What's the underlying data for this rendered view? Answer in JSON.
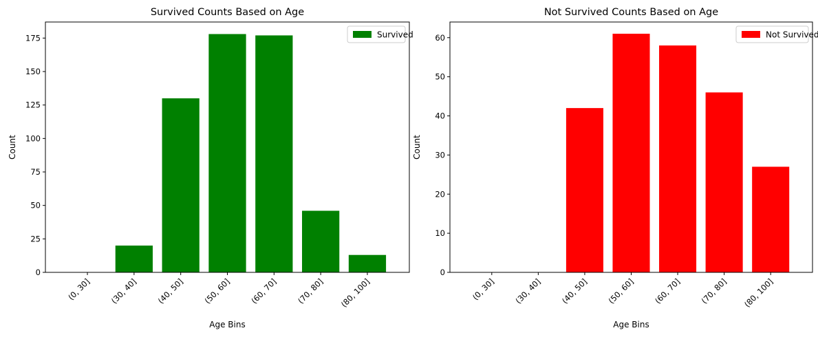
{
  "chart_data": [
    {
      "type": "bar",
      "title": "Survived Counts Based on Age",
      "xlabel": "Age Bins",
      "ylabel": "Count",
      "categories": [
        "(0, 30]",
        "(30, 40]",
        "(40, 50]",
        "(50, 60]",
        "(60, 70]",
        "(70, 80]",
        "(80, 100]"
      ],
      "series": [
        {
          "name": "Survived",
          "values": [
            0,
            20,
            130,
            178,
            177,
            46,
            13
          ]
        }
      ],
      "ylim": [
        0,
        187
      ],
      "yticks": [
        0,
        25,
        50,
        75,
        100,
        125,
        150,
        175
      ],
      "color": "#008000",
      "legend": "top-right",
      "grid": false
    },
    {
      "type": "bar",
      "title": "Not Survived Counts Based on Age",
      "xlabel": "Age Bins",
      "ylabel": "Count",
      "categories": [
        "(0, 30]",
        "(30, 40]",
        "(40, 50]",
        "(50, 60]",
        "(60, 70]",
        "(70, 80]",
        "(80, 100]"
      ],
      "series": [
        {
          "name": "Not Survived",
          "values": [
            0,
            0,
            42,
            61,
            58,
            46,
            27
          ]
        }
      ],
      "ylim": [
        0,
        64
      ],
      "yticks": [
        0,
        10,
        20,
        30,
        40,
        50,
        60
      ],
      "color": "#ff0000",
      "legend": "top-right",
      "grid": false
    }
  ]
}
